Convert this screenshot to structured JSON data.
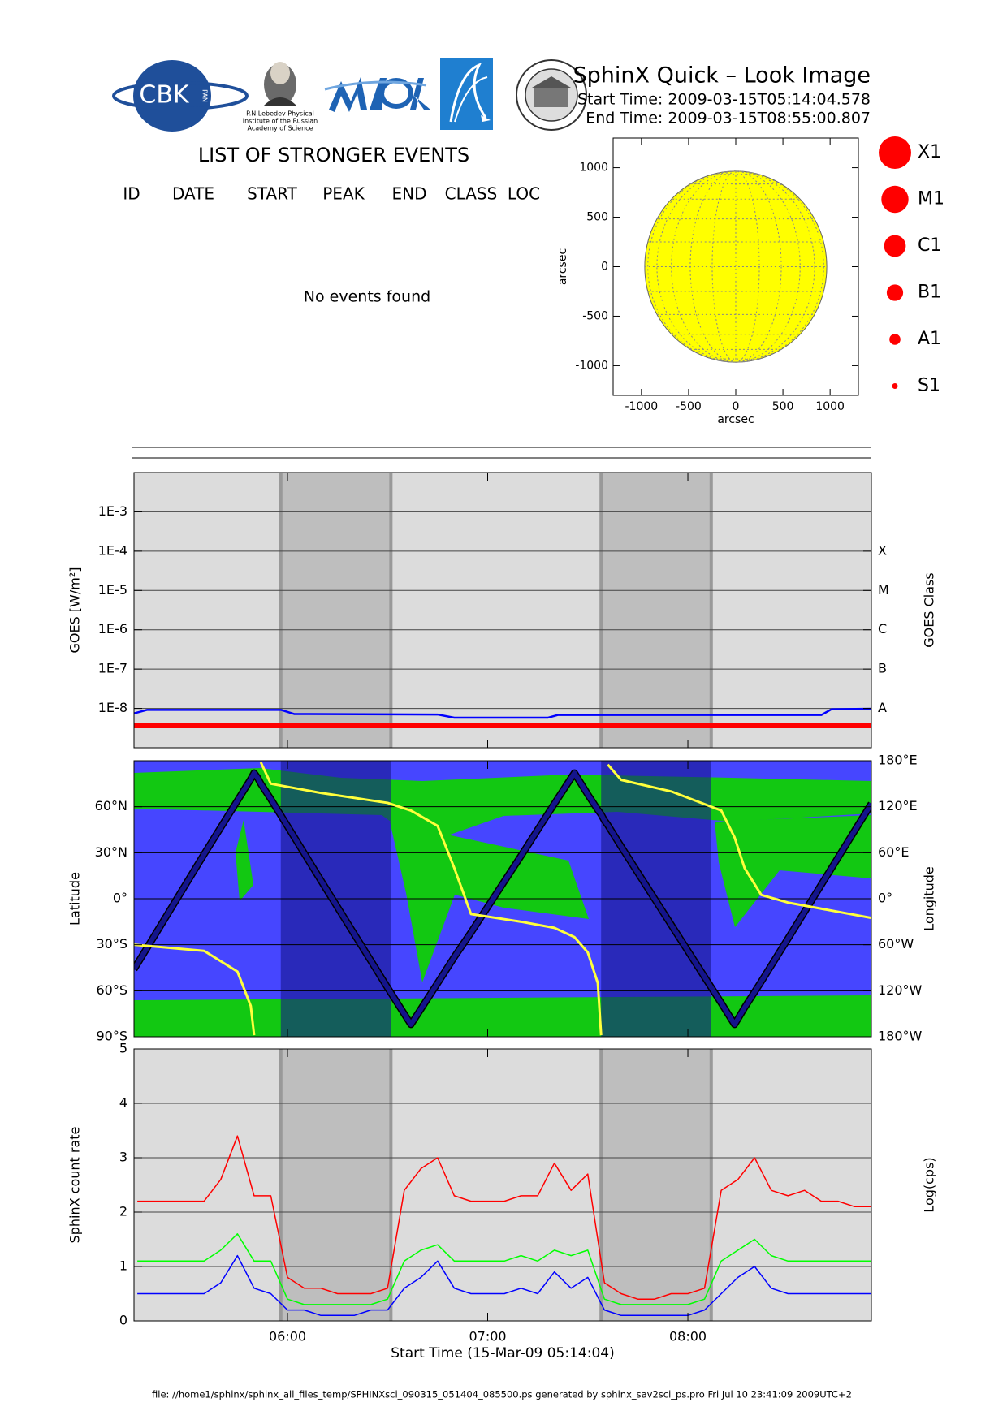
{
  "header": {
    "title": "SphinX Quick – Look Image",
    "start_time": "Start Time: 2009-03-15T05:14:04.578",
    "end_time": "End Time: 2009-03-15T08:55:00.807",
    "logos": {
      "cbk": "CBK",
      "pan": "PAN",
      "lebedev": [
        "P.N.Lebedev Physical",
        "Institute of the Russian",
        "Academy of Science"
      ]
    }
  },
  "events": {
    "title": "LIST OF STRONGER EVENTS",
    "columns": [
      "ID",
      "DATE",
      "START",
      "PEAK",
      "END",
      "CLASS",
      "LOC"
    ],
    "message": "No events found"
  },
  "footer": "file: //home1/sphinx/sphinx_all_files_temp/SPHINXsci_090315_051404_085500.ps generated by sphinx_sav2sci_ps.pro Fri Jul 10 23:41:09 2009UTC+2",
  "chart_data": [
    {
      "type": "disk",
      "xlabel": "arcsec",
      "ylabel": "arcsec",
      "xlim": [
        -1300,
        1300
      ],
      "ylim": [
        -1300,
        1300
      ],
      "xticks": [
        -1000,
        -500,
        0,
        500,
        1000
      ],
      "yticks": [
        -1000,
        -500,
        0,
        500,
        1000
      ],
      "radius": 965,
      "color": "#ffff00",
      "legend": [
        "X1",
        "M1",
        "C1",
        "B1",
        "A1",
        "S1"
      ],
      "legend_color": "#ff0000"
    },
    {
      "type": "line",
      "ylabel": "GOES [W/m²]",
      "y2label": "GOES Class",
      "log_y": true,
      "xlim": [
        "05:14",
        "08:55"
      ],
      "ylim": [
        1e-09,
        0.01
      ],
      "yticks": [
        {
          "value": 1e-08,
          "label": "1E-8"
        },
        {
          "value": 1e-07,
          "label": "1E-7"
        },
        {
          "value": 1e-06,
          "label": "1E-6"
        },
        {
          "value": 1e-05,
          "label": "1E-5"
        },
        {
          "value": 0.0001,
          "label": "1E-4"
        },
        {
          "value": 0.001,
          "label": "1E-3"
        }
      ],
      "y2lim": [
        1e-09,
        0.01
      ],
      "y2ticks": [
        {
          "value": 1e-08,
          "label": "A"
        },
        {
          "value": 1e-07,
          "label": "B"
        },
        {
          "value": 1e-06,
          "label": "C"
        },
        {
          "value": 1e-05,
          "label": "M"
        },
        {
          "value": 0.0001,
          "label": "X"
        }
      ],
      "grid": true,
      "background": "#dcdcdc",
      "shading": [
        [
          "05:58",
          "06:31"
        ],
        [
          "07:34",
          "08:07"
        ]
      ],
      "shading_color": "#bebebe",
      "series": [
        {
          "color": "#0000ff",
          "x": [
            "05:14",
            "05:18",
            "05:58",
            "06:02",
            "06:45",
            "06:50",
            "07:18",
            "07:21",
            "08:40",
            "08:43",
            "08:55"
          ],
          "values": [
            7.5e-09,
            9.2e-09,
            9.2e-09,
            7.2e-09,
            7e-09,
            5.8e-09,
            5.8e-09,
            6.8e-09,
            6.8e-09,
            9.5e-09,
            9.8e-09
          ]
        },
        {
          "color": "#ff0000",
          "x": [
            "05:14",
            "08:55"
          ],
          "values": [
            3.7e-09,
            3.7e-09
          ]
        }
      ]
    },
    {
      "type": "line",
      "ylabel": "Latitude",
      "y2label": "Longitude",
      "xlim": [
        "05:14",
        "08:55"
      ],
      "ylim": [
        -90,
        90
      ],
      "yticks": [
        {
          "value": -90,
          "label": "90°S"
        },
        {
          "value": -60,
          "label": "60°S"
        },
        {
          "value": -30,
          "label": "30°S"
        },
        {
          "value": 0,
          "label": "0°"
        },
        {
          "value": 30,
          "label": "30°N"
        },
        {
          "value": 60,
          "label": "60°N"
        }
      ],
      "y2lim": [
        -180,
        180
      ],
      "y2ticks": [
        {
          "value": -180,
          "label": "180°W"
        },
        {
          "value": -120,
          "label": "120°W"
        },
        {
          "value": -60,
          "label": "60°W"
        },
        {
          "value": 0,
          "label": "0°"
        },
        {
          "value": 60,
          "label": "60°E"
        },
        {
          "value": 120,
          "label": "120°E"
        },
        {
          "value": 180,
          "label": "180°E"
        }
      ],
      "grid": true,
      "background": "#4646ff",
      "shading": [
        [
          "05:58",
          "06:31"
        ],
        [
          "07:34",
          "08:07"
        ]
      ],
      "shading_color": "#15158c",
      "x": [
        "05:14",
        "05:35",
        "05:45",
        "05:49",
        "05:50",
        "05:51",
        "05:52",
        "05:55",
        "06:10",
        "06:30",
        "06:37",
        "06:45",
        "06:50",
        "06:55",
        "07:10",
        "07:20",
        "07:26",
        "07:30",
        "07:33",
        "07:34",
        "07:35",
        "07:36",
        "07:40",
        "07:55",
        "08:10",
        "08:14",
        "08:17",
        "08:22",
        "08:30",
        "08:55"
      ],
      "series": [
        {
          "color": "#14148c",
          "values": [
            -46,
            29,
            64,
            78,
            82,
            79,
            75,
            65,
            12,
            -58,
            -82,
            -55,
            -38,
            -22,
            28,
            62,
            82,
            68,
            58,
            55,
            51,
            48,
            34,
            -17,
            -68,
            -82,
            -71,
            -54,
            -26,
            62
          ]
        },
        {
          "color": "#ffff3c",
          "axis": "y2",
          "values": [
            -60,
            -68,
            -95,
            -140,
            -178,
            null,
            178,
            150,
            138,
            125,
            115,
            95,
            40,
            -20,
            -30,
            -38,
            -50,
            -70,
            -110,
            -178,
            null,
            175,
            155,
            140,
            115,
            80,
            40,
            5,
            -5,
            -25
          ]
        }
      ]
    },
    {
      "type": "line",
      "ylabel": "SphinX count rate",
      "y2label": "Log(cps)",
      "xlabel": "Start Time (15-Mar-09 05:14:04)",
      "xlim": [
        "05:14",
        "08:55"
      ],
      "xticks": [
        "06:00",
        "07:00",
        "08:00"
      ],
      "ylim": [
        0,
        5
      ],
      "yticks": [
        0,
        1,
        2,
        3,
        4,
        5
      ],
      "grid": true,
      "background": "#dcdcdc",
      "shading": [
        [
          "05:58",
          "06:31"
        ],
        [
          "07:34",
          "08:07"
        ]
      ],
      "shading_color": "#bebebe",
      "x": [
        "05:15",
        "05:20",
        "05:25",
        "05:30",
        "05:35",
        "05:40",
        "05:45",
        "05:50",
        "05:55",
        "06:00",
        "06:05",
        "06:10",
        "06:15",
        "06:20",
        "06:25",
        "06:30",
        "06:35",
        "06:40",
        "06:45",
        "06:50",
        "06:55",
        "07:00",
        "07:05",
        "07:10",
        "07:15",
        "07:20",
        "07:25",
        "07:30",
        "07:35",
        "07:40",
        "07:45",
        "07:50",
        "07:55",
        "08:00",
        "08:05",
        "08:10",
        "08:15",
        "08:20",
        "08:25",
        "08:30",
        "08:35",
        "08:40",
        "08:45",
        "08:50",
        "08:55"
      ],
      "series": [
        {
          "color": "#ff0000",
          "values": [
            2.2,
            2.2,
            2.2,
            2.2,
            2.2,
            2.6,
            3.4,
            2.3,
            2.3,
            0.8,
            0.6,
            0.6,
            0.5,
            0.5,
            0.5,
            0.6,
            2.4,
            2.8,
            3.0,
            2.3,
            2.2,
            2.2,
            2.2,
            2.3,
            2.3,
            2.9,
            2.4,
            2.7,
            0.7,
            0.5,
            0.4,
            0.4,
            0.5,
            0.5,
            0.6,
            2.4,
            2.6,
            3.0,
            2.4,
            2.3,
            2.4,
            2.2,
            2.2,
            2.1,
            2.1
          ]
        },
        {
          "color": "#00ff00",
          "values": [
            1.1,
            1.1,
            1.1,
            1.1,
            1.1,
            1.3,
            1.6,
            1.1,
            1.1,
            0.4,
            0.3,
            0.3,
            0.3,
            0.3,
            0.3,
            0.4,
            1.1,
            1.3,
            1.4,
            1.1,
            1.1,
            1.1,
            1.1,
            1.2,
            1.1,
            1.3,
            1.2,
            1.3,
            0.4,
            0.3,
            0.3,
            0.3,
            0.3,
            0.3,
            0.4,
            1.1,
            1.3,
            1.5,
            1.2,
            1.1,
            1.1,
            1.1,
            1.1,
            1.1,
            1.1
          ]
        },
        {
          "color": "#0000ff",
          "values": [
            0.5,
            0.5,
            0.5,
            0.5,
            0.5,
            0.7,
            1.2,
            0.6,
            0.5,
            0.2,
            0.2,
            0.1,
            0.1,
            0.1,
            0.2,
            0.2,
            0.6,
            0.8,
            1.1,
            0.6,
            0.5,
            0.5,
            0.5,
            0.6,
            0.5,
            0.9,
            0.6,
            0.8,
            0.2,
            0.1,
            0.1,
            0.1,
            0.1,
            0.1,
            0.2,
            0.5,
            0.8,
            1.0,
            0.6,
            0.5,
            0.5,
            0.5,
            0.5,
            0.5,
            0.5
          ]
        }
      ]
    }
  ]
}
